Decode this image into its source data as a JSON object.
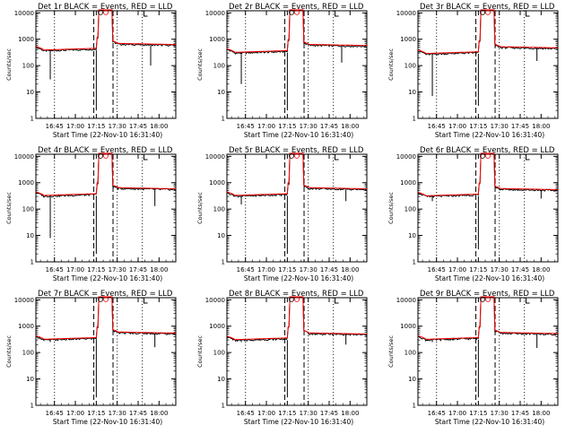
{
  "figure": {
    "xlabel": "Start Time (22-Nov-10 16:31:40)",
    "ylabel": "Counts/sec"
  },
  "chart_data": [
    {
      "type": "line",
      "title": "Det 1r BLACK = Events, RED = LLD",
      "level": 380,
      "post_level": 600,
      "dips": [
        [
          16.7,
          30
        ],
        [
          17.25,
          2
        ],
        [
          17.9,
          100
        ]
      ],
      "flag_marks": [
        17.35,
        17.75
      ]
    },
    {
      "type": "line",
      "title": "Det 2r BLACK = Events, RED = LLD",
      "level": 310,
      "post_level": 550,
      "dips": [
        [
          16.7,
          20
        ],
        [
          17.25,
          2
        ],
        [
          17.9,
          130
        ]
      ],
      "flag_marks": [
        17.35,
        17.75
      ]
    },
    {
      "type": "line",
      "title": "Det 3r BLACK = Events, RED = LLD",
      "level": 280,
      "post_level": 450,
      "dips": [
        [
          16.7,
          7
        ],
        [
          17.25,
          3
        ],
        [
          17.95,
          150
        ]
      ],
      "flag_marks": [
        17.35,
        17.75
      ]
    },
    {
      "type": "line",
      "title": "Det 4r BLACK = Events, RED = LLD",
      "level": 320,
      "post_level": 560,
      "dips": [
        [
          16.7,
          8
        ],
        [
          17.25,
          2
        ],
        [
          17.95,
          130
        ]
      ],
      "flag_marks": [
        17.35,
        17.75
      ]
    },
    {
      "type": "line",
      "title": "Det 5r BLACK = Events, RED = LLD",
      "level": 320,
      "post_level": 560,
      "dips": [
        [
          16.7,
          150
        ],
        [
          17.25,
          2
        ],
        [
          17.95,
          200
        ]
      ],
      "flag_marks": [
        17.35,
        17.75
      ]
    },
    {
      "type": "line",
      "title": "Det 6r BLACK = Events, RED = LLD",
      "level": 310,
      "post_level": 520,
      "dips": [
        [
          16.7,
          200
        ],
        [
          17.25,
          3
        ],
        [
          18.0,
          250
        ]
      ],
      "flag_marks": [
        17.35,
        17.75
      ]
    },
    {
      "type": "line",
      "title": "Det 7r BLACK = Events, RED = LLD",
      "level": 310,
      "post_level": 520,
      "dips": [
        [
          16.7,
          250
        ],
        [
          17.25,
          2
        ],
        [
          17.95,
          160
        ]
      ],
      "flag_marks": [
        17.35,
        17.75
      ]
    },
    {
      "type": "line",
      "title": "Det 8r BLACK = Events, RED = LLD",
      "level": 300,
      "post_level": 480,
      "dips": [
        [
          16.7,
          250
        ],
        [
          17.25,
          2
        ],
        [
          17.95,
          200
        ]
      ],
      "flag_marks": [
        17.35,
        17.75
      ]
    },
    {
      "type": "line",
      "title": "Det 9r BLACK = Events, RED = LLD",
      "level": 310,
      "post_level": 500,
      "dips": [
        [
          16.7,
          250
        ],
        [
          17.25,
          2
        ],
        [
          17.95,
          150
        ]
      ],
      "flag_marks": [
        17.35,
        17.75
      ]
    }
  ],
  "axes": {
    "x_ticks": [
      "16:45",
      "17:00",
      "17:15",
      "17:30",
      "17:45",
      "18:00"
    ],
    "y_ticks": [
      "1",
      "10",
      "100",
      "1000",
      "10000"
    ],
    "y_scale": "log",
    "y_range": [
      1,
      12000
    ],
    "x_range_hours": [
      16.528,
      18.2
    ]
  },
  "colors": {
    "events": "#000000",
    "lld": "#ff0000"
  }
}
